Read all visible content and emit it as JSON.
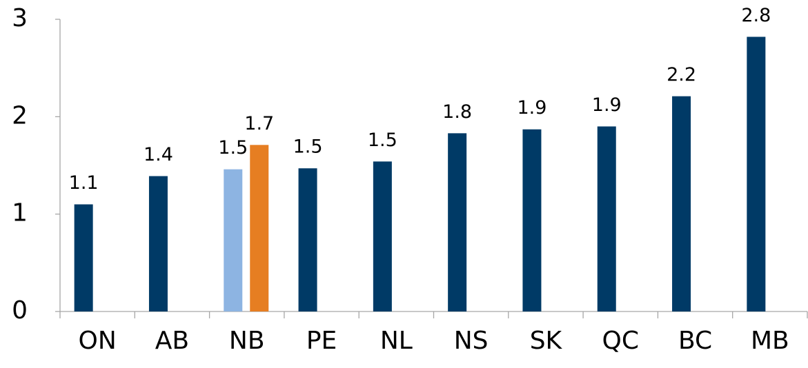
{
  "chart_data": {
    "type": "bar",
    "categories": [
      "ON",
      "AB",
      "NB",
      "PE",
      "NL",
      "NS",
      "SK",
      "QC",
      "BC",
      "MB"
    ],
    "series": [
      {
        "color": "#003a66",
        "values": [
          1.1,
          1.39,
          null,
          1.47,
          1.54,
          1.83,
          1.87,
          1.9,
          2.21,
          2.82
        ],
        "value_labels": [
          "1.1",
          "1.4",
          null,
          "1.5",
          "1.5",
          "1.8",
          "1.9",
          "1.9",
          "2.2",
          "2.8"
        ]
      },
      {
        "color": "#8db4e2",
        "values": [
          null,
          null,
          1.46,
          null,
          null,
          null,
          null,
          null,
          null,
          null
        ],
        "value_labels": [
          null,
          null,
          "1.5",
          null,
          null,
          null,
          null,
          null,
          null,
          null
        ]
      },
      {
        "color": "#e67e22",
        "values": [
          null,
          null,
          1.71,
          null,
          null,
          null,
          null,
          null,
          null,
          null
        ],
        "value_labels": [
          null,
          null,
          "1.7",
          null,
          null,
          null,
          null,
          null,
          null,
          null
        ]
      }
    ],
    "ylim": [
      0,
      3
    ],
    "yticks": [
      0,
      1,
      2,
      3
    ],
    "grid": false
  }
}
